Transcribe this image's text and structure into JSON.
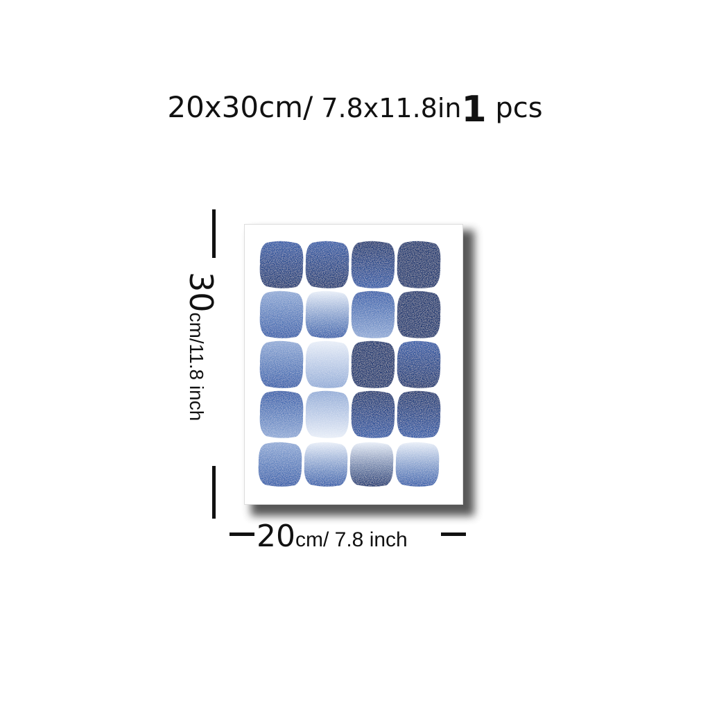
{
  "title": {
    "size_cm": "20x30cm/",
    "size_in": " 7.8x11.8in",
    "quantity": "1",
    "quantity_unit": " pcs"
  },
  "dimensions": {
    "height_value": "30",
    "height_unit": "cm/11.8 inch",
    "width_value": "20",
    "width_unit": "cm/ 7.8 inch"
  },
  "poster": {
    "artwork": "blue watercolor blobs grid",
    "rows": 5,
    "columns": 4,
    "colors": {
      "deep": "#13306e",
      "mid": "#2e5aa8",
      "light": "#8fa9d6",
      "pale": "#e8eef8"
    }
  }
}
